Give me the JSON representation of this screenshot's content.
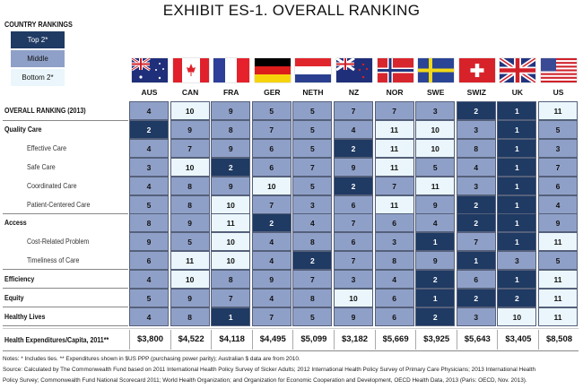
{
  "title": "EXHIBIT ES-1. OVERALL RANKING",
  "legend": {
    "title": "COUNTRY RANKINGS",
    "items": [
      {
        "label": "Top 2*",
        "color": "#1f3a63",
        "text_color": "#ffffff"
      },
      {
        "label": "Middle",
        "color": "#8fa0c8",
        "text_color": "#111111"
      },
      {
        "label": "Bottom 2*",
        "color": "#eaf6fb",
        "text_color": "#111111"
      }
    ]
  },
  "countries": [
    "AUS",
    "CAN",
    "FRA",
    "GER",
    "NETH",
    "NZ",
    "NOR",
    "SWE",
    "SWIZ",
    "UK",
    "US"
  ],
  "rows": [
    {
      "label": "OVERALL RANKING (2013)",
      "type": "cat",
      "values": [
        4,
        10,
        9,
        5,
        5,
        7,
        7,
        3,
        2,
        1,
        11
      ]
    },
    {
      "label": "Quality Care",
      "type": "cat",
      "values": [
        2,
        9,
        8,
        7,
        5,
        4,
        11,
        10,
        3,
        1,
        5
      ]
    },
    {
      "label": "Effective Care",
      "type": "sub",
      "values": [
        4,
        7,
        9,
        6,
        5,
        2,
        11,
        10,
        8,
        1,
        3
      ]
    },
    {
      "label": "Safe Care",
      "type": "sub",
      "values": [
        3,
        10,
        2,
        6,
        7,
        9,
        11,
        5,
        4,
        1,
        7
      ]
    },
    {
      "label": "Coordinated Care",
      "type": "sub",
      "values": [
        4,
        8,
        9,
        10,
        5,
        2,
        7,
        11,
        3,
        1,
        6
      ]
    },
    {
      "label": "Patient-Centered Care",
      "type": "sub",
      "values": [
        5,
        8,
        10,
        7,
        3,
        6,
        11,
        9,
        2,
        1,
        4
      ]
    },
    {
      "label": "Access",
      "type": "cat",
      "values": [
        8,
        9,
        11,
        2,
        4,
        7,
        6,
        4,
        2,
        1,
        9
      ]
    },
    {
      "label": "Cost-Related Problem",
      "type": "sub",
      "values": [
        9,
        5,
        10,
        4,
        8,
        6,
        3,
        1,
        7,
        1,
        11
      ]
    },
    {
      "label": "Timeliness of Care",
      "type": "sub",
      "values": [
        6,
        11,
        10,
        4,
        2,
        7,
        8,
        9,
        1,
        3,
        5
      ]
    },
    {
      "label": "Efficiency",
      "type": "cat",
      "values": [
        4,
        10,
        8,
        9,
        7,
        3,
        4,
        2,
        6,
        1,
        11
      ]
    },
    {
      "label": "Equity",
      "type": "cat",
      "values": [
        5,
        9,
        7,
        4,
        8,
        10,
        6,
        1,
        2,
        2,
        11
      ]
    },
    {
      "label": "Healthy Lives",
      "type": "cat",
      "values": [
        4,
        8,
        1,
        7,
        5,
        9,
        6,
        2,
        3,
        10,
        11
      ]
    }
  ],
  "expenditures": {
    "label": "Health Expenditures/Capita, 2011**",
    "values": [
      "$3,800",
      "$4,522",
      "$4,118",
      "$4,495",
      "$5,099",
      "$3,182",
      "$5,669",
      "$3,925",
      "$5,643",
      "$3,405",
      "$8,508"
    ]
  },
  "notes": [
    "Notes: * Includes ties. ** Expenditures shown in $US PPP (purchasing power parity); Australian $ data are from 2010.",
    "Source: Calculated by The Commonwealth Fund based on 2011 International Health Policy Survey of Sicker Adults; 2012 International Health Policy Survey of Primary Care Physicians; 2013 International Health",
    "Policy Survey; Commonwealth Fund National Scorecard 2011; World Health Organization; and Organization for Economic Cooperation and Development, OECD Health Data, 2013 (Paris: OECD, Nov. 2013)."
  ]
}
